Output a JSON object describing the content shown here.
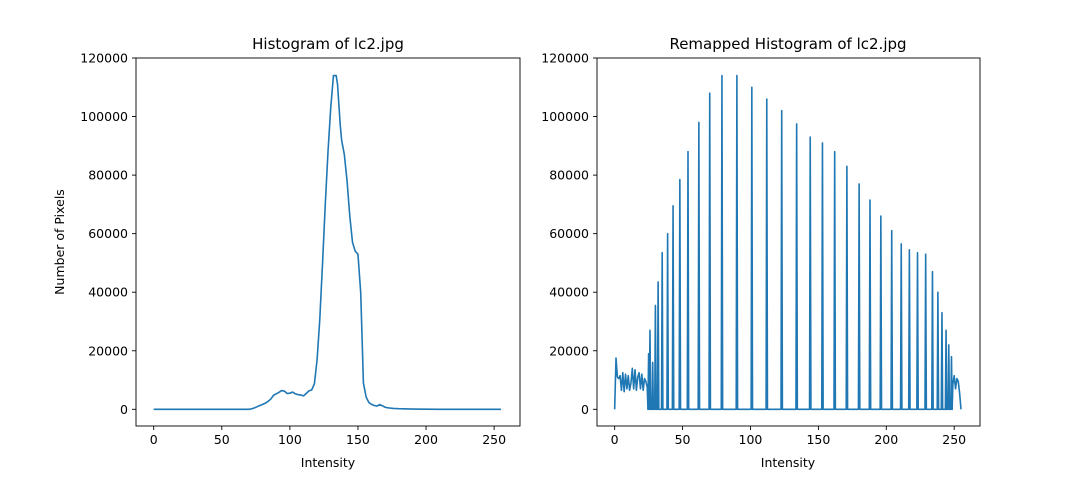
{
  "chart_data": [
    {
      "type": "line",
      "title": "Histogram of lc2.jpg",
      "xlabel": "Intensity",
      "ylabel": "Number of Pixels",
      "xlim": [
        -13,
        269
      ],
      "ylim": [
        -5700,
        120000
      ],
      "xticks": [
        0,
        50,
        100,
        150,
        200,
        250
      ],
      "yticks": [
        0,
        20000,
        40000,
        60000,
        80000,
        100000,
        120000
      ],
      "grid": false,
      "color": "#1f77b4",
      "series": [
        {
          "x": [
            0,
            30,
            60,
            70,
            72,
            74,
            76,
            78,
            80,
            82,
            84,
            86,
            88,
            90,
            92,
            94,
            96,
            98,
            100,
            102,
            104,
            106,
            108,
            110,
            112,
            114,
            116,
            118,
            120,
            122,
            124,
            126,
            128,
            130,
            132,
            134,
            135,
            136,
            137,
            138,
            140,
            142,
            144,
            146,
            148,
            150,
            152,
            153,
            154,
            156,
            158,
            160,
            162,
            164,
            166,
            168,
            170,
            172,
            174,
            176,
            180,
            190,
            200,
            210,
            230,
            255
          ],
          "y": [
            0,
            0,
            0,
            0,
            200,
            500,
            900,
            1300,
            1700,
            2100,
            2700,
            3500,
            4800,
            5300,
            5800,
            6400,
            6200,
            5400,
            5500,
            5900,
            5300,
            5000,
            4900,
            4600,
            5400,
            6300,
            6600,
            8700,
            17000,
            31000,
            50000,
            70000,
            88000,
            103000,
            114000,
            114000,
            111000,
            104000,
            97000,
            92000,
            87000,
            78000,
            66000,
            57000,
            54000,
            53000,
            40000,
            25000,
            9000,
            4200,
            2300,
            1700,
            1300,
            1100,
            1600,
            1200,
            700,
            500,
            400,
            300,
            200,
            100,
            50,
            0,
            0,
            0
          ]
        }
      ]
    },
    {
      "type": "line",
      "title": "Remapped Histogram of lc2.jpg",
      "xlabel": "Intensity",
      "ylabel": "",
      "xlim": [
        -13,
        269
      ],
      "ylim": [
        -5700,
        120000
      ],
      "xticks": [
        0,
        50,
        100,
        150,
        200,
        250
      ],
      "yticks": [
        0,
        20000,
        40000,
        60000,
        80000,
        100000,
        120000
      ],
      "grid": false,
      "color": "#1f77b4",
      "baseline_noise": {
        "x": [
          0,
          1,
          2,
          3,
          4,
          5,
          6,
          7,
          8,
          9,
          10,
          11,
          12,
          13,
          14,
          15,
          16,
          17,
          18,
          19,
          20,
          21,
          22,
          23,
          24
        ],
        "y": [
          0,
          17500,
          11000,
          10500,
          11500,
          6500,
          12500,
          6000,
          12000,
          7000,
          11500,
          6500,
          9000,
          14000,
          7000,
          13500,
          6500,
          11000,
          12500,
          7000,
          12000,
          6500,
          10500,
          9500,
          7500
        ]
      },
      "spikes": {
        "x": [
          25,
          26,
          28,
          30,
          32,
          35,
          39,
          43,
          48,
          54,
          62,
          70,
          79,
          90,
          101,
          112,
          123,
          134,
          144,
          153,
          162,
          171,
          180,
          188,
          196,
          204,
          211,
          217,
          223,
          229,
          234,
          238,
          241,
          244,
          246,
          248
        ],
        "y": [
          19000,
          27000,
          16000,
          35500,
          43500,
          53500,
          60000,
          69500,
          78500,
          88000,
          98000,
          108000,
          114000,
          114000,
          110000,
          106000,
          102000,
          97500,
          93000,
          91000,
          88000,
          83000,
          77000,
          71500,
          66000,
          61000,
          56500,
          54500,
          53500,
          53000,
          47000,
          40000,
          33000,
          27000,
          22000,
          18000
        ]
      },
      "tail": {
        "x": [
          249,
          250,
          251,
          252,
          253,
          254,
          255
        ],
        "y": [
          8500,
          11500,
          7000,
          10500,
          9500,
          5500,
          0
        ]
      }
    }
  ]
}
